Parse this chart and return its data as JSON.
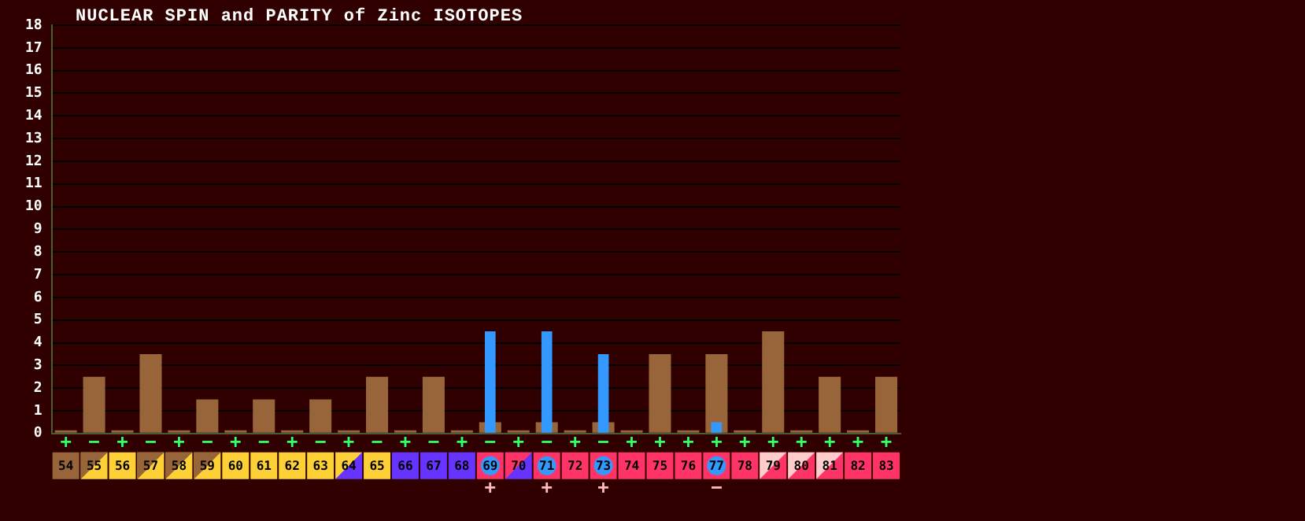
{
  "chart_data": {
    "type": "bar",
    "title": "NUCLEAR SPIN and PARITY of Zinc ISOTOPES",
    "categories": [
      "54",
      "55",
      "56",
      "57",
      "58",
      "59",
      "60",
      "61",
      "62",
      "63",
      "64",
      "65",
      "66",
      "67",
      "68",
      "69",
      "70",
      "71",
      "72",
      "73",
      "74",
      "75",
      "76",
      "77",
      "78",
      "79",
      "80",
      "81",
      "82",
      "83"
    ],
    "series": [
      {
        "color": "#98643a",
        "values": [
          0,
          2.5,
          0,
          3.5,
          0,
          1.5,
          0,
          1.5,
          0,
          1.5,
          0,
          2.5,
          0,
          2.5,
          0,
          0.5,
          0,
          0.5,
          0,
          0.5,
          0,
          3.5,
          0,
          3.5,
          0,
          4.5,
          0,
          2.5,
          0,
          2.5
        ],
        "value_labels": [
          "+",
          "−",
          "+",
          "−",
          "+",
          "−",
          "+",
          "−",
          "+",
          "−",
          "+",
          "−",
          "+",
          "−",
          "+",
          "−",
          "+",
          "−",
          "+",
          "−",
          "+",
          "+",
          "+",
          "+",
          "+",
          "+",
          "+",
          "+",
          "+",
          "+"
        ]
      },
      {
        "color": "#3399ff",
        "values": [
          null,
          null,
          null,
          null,
          null,
          null,
          null,
          null,
          null,
          null,
          null,
          null,
          null,
          null,
          null,
          4.5,
          null,
          4.5,
          null,
          3.5,
          null,
          null,
          null,
          0.5,
          null,
          null,
          null,
          null,
          null,
          null
        ],
        "value_labels": [
          null,
          null,
          null,
          null,
          null,
          null,
          null,
          null,
          null,
          null,
          null,
          null,
          null,
          null,
          null,
          "+",
          null,
          "+",
          null,
          "+",
          null,
          null,
          null,
          "−",
          null,
          null,
          null,
          null,
          null,
          null
        ]
      }
    ],
    "ylim": [
      0,
      18
    ],
    "yticks": [
      0,
      1,
      2,
      3,
      4,
      5,
      6,
      7,
      8,
      9,
      10,
      11,
      12,
      13,
      14,
      15,
      16,
      17,
      18
    ],
    "grid": "y",
    "legend": false
  }
}
